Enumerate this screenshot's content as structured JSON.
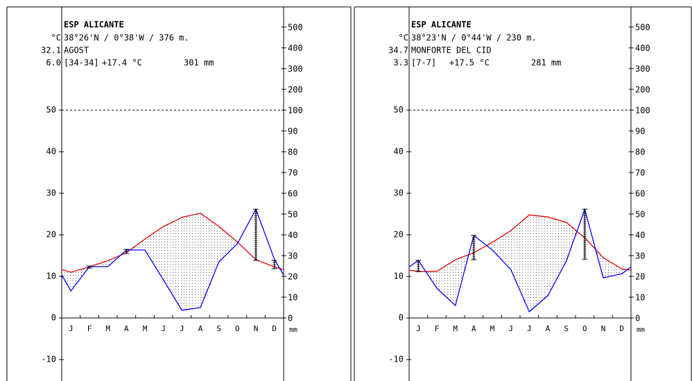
{
  "chart_data": [
    {
      "type": "climate",
      "title": "ESP ALICANTE",
      "unit": "°C",
      "coords": "38°26'N / 0°38'W / 376 m.",
      "max_temp": "32.1",
      "station": "AGOST",
      "min_temp": "6.0",
      "years": "[34-34]",
      "mean_temp": "+17.4 °C",
      "annual_precip": "301 mm",
      "categories": [
        "J",
        "F",
        "M",
        "A",
        "M",
        "J",
        "J",
        "A",
        "S",
        "O",
        "N",
        "D"
      ],
      "x_label": "mm",
      "ylim": [
        -15,
        50
      ],
      "yticks": [
        -10,
        0,
        10,
        20,
        30,
        40,
        50
      ],
      "y2lim": [
        0,
        500
      ],
      "y2_break": 100,
      "y2ticks": [
        0,
        10,
        20,
        30,
        40,
        50,
        60,
        70,
        80,
        90,
        100,
        200,
        300,
        400,
        500
      ],
      "series": [
        {
          "color": "#e00000",
          "values": [
            11,
            12.3,
            13.8,
            15.7,
            19,
            22,
            24.2,
            25.2,
            22,
            18.3,
            14,
            12.3
          ]
        },
        {
          "color": "#0000ff",
          "axis": "y2",
          "values": [
            13,
            24.7,
            24.7,
            32.7,
            32.7,
            18.3,
            3.7,
            5,
            27,
            35.7,
            52.3,
            28.3
          ],
          "err_low": [
            null,
            24,
            null,
            31,
            null,
            null,
            null,
            null,
            null,
            null,
            27.7,
            23.7
          ],
          "err_high": [
            null,
            25,
            null,
            33,
            null,
            null,
            null,
            null,
            null,
            null,
            52.3,
            27.7
          ]
        }
      ]
    },
    {
      "type": "climate",
      "title": "ESP ALICANTE",
      "unit": "°C",
      "coords": "38°23'N / 0°44'W / 230 m.",
      "max_temp": "34.7",
      "station": "MONFORTE DEL CID",
      "min_temp": "3.3",
      "years": "[7-7]",
      "mean_temp": "+17.5 °C",
      "annual_precip": "281 mm",
      "categories": [
        "J",
        "F",
        "M",
        "A",
        "M",
        "J",
        "J",
        "A",
        "S",
        "O",
        "N",
        "D"
      ],
      "x_label": "mm",
      "ylim": [
        -15,
        50
      ],
      "yticks": [
        -10,
        0,
        10,
        20,
        30,
        40,
        50
      ],
      "y2lim": [
        0,
        500
      ],
      "y2_break": 100,
      "y2ticks": [
        0,
        10,
        20,
        30,
        40,
        50,
        60,
        70,
        80,
        90,
        100,
        200,
        300,
        400,
        500
      ],
      "series": [
        {
          "color": "#e00000",
          "values": [
            11.2,
            11.2,
            14,
            15.7,
            18.2,
            21,
            24.8,
            24.3,
            23,
            19.3,
            14.5,
            11.8
          ]
        },
        {
          "color": "#0000ff",
          "axis": "y2",
          "values": [
            27.7,
            14.3,
            6,
            39.7,
            32.7,
            23.3,
            3,
            10.7,
            27.3,
            52.3,
            19.3,
            21.3
          ],
          "err_low": [
            22.3,
            null,
            null,
            28,
            null,
            null,
            null,
            null,
            null,
            28.3,
            null,
            null
          ],
          "err_high": [
            27.7,
            null,
            null,
            39.7,
            null,
            null,
            null,
            null,
            null,
            52.3,
            null,
            null
          ]
        }
      ]
    }
  ]
}
